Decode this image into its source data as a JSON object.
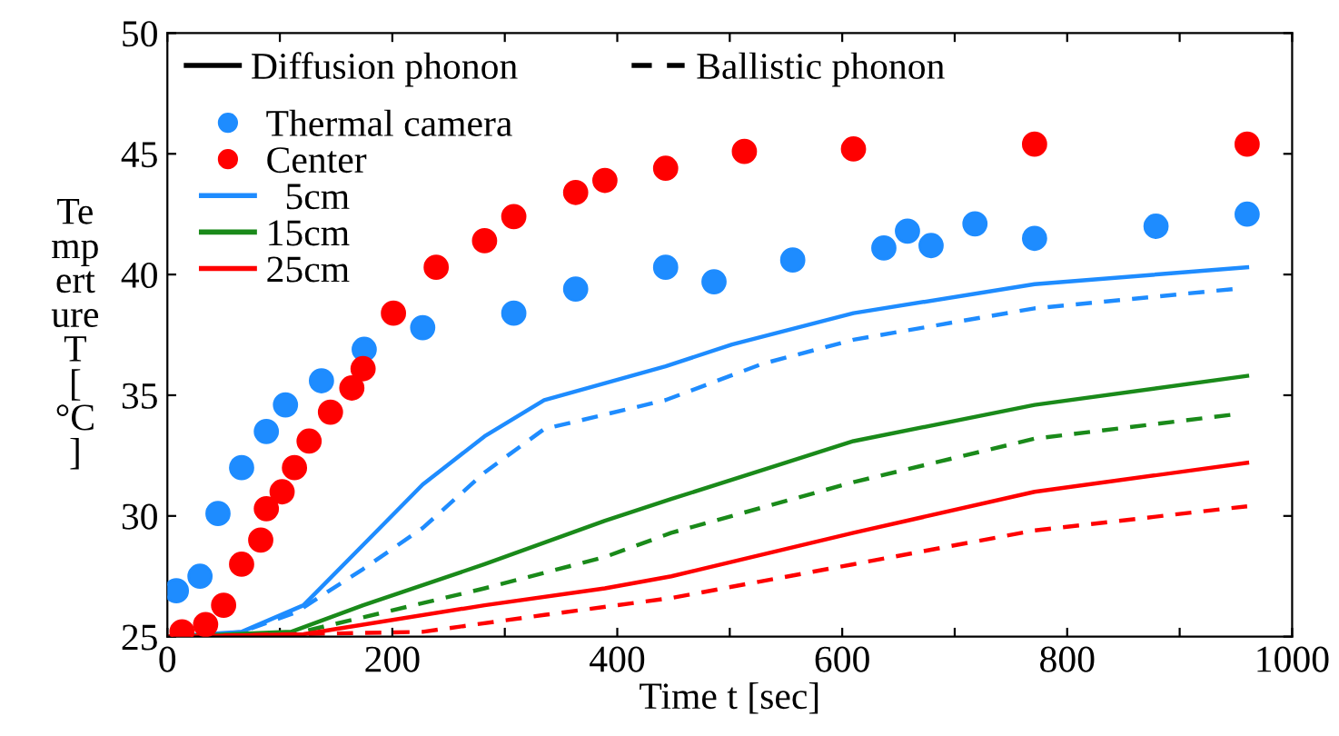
{
  "chart_data": {
    "type": "line",
    "xlabel": "Time t [sec]",
    "ylabel": "Te\nmp\nert\nure\nT\n[\n°C\n]",
    "xlim": [
      0,
      1000
    ],
    "ylim": [
      25,
      50
    ],
    "xticks": [
      0,
      {
        "value": 100,
        "label": null
      },
      200,
      {
        "value": 300,
        "label": null
      },
      400,
      {
        "value": 500,
        "label": null
      },
      600,
      {
        "value": 700,
        "label": null
      },
      800,
      {
        "value": 900,
        "label": null
      },
      1000
    ],
    "yticks": [
      25,
      30,
      35,
      40,
      45,
      50
    ],
    "legend": "top left",
    "grid": false,
    "series": [
      {
        "name": "Diffusion phonon",
        "color": "#000000",
        "line_style": "solid"
      },
      {
        "name": "Ballistic phonon",
        "color": "#000000",
        "line_style": "dashed"
      },
      {
        "name": "Thermal camera",
        "type": "scatter",
        "marker": "circle",
        "color": "#1e8cff",
        "x": [
          8,
          29,
          45,
          66,
          88,
          105,
          137,
          175,
          227,
          308,
          363,
          443,
          486,
          556,
          637,
          658,
          679,
          718,
          771,
          879,
          960
        ],
        "values": [
          26.9,
          27.5,
          30.1,
          32.0,
          33.5,
          34.6,
          35.6,
          36.9,
          37.8,
          38.4,
          39.4,
          40.3,
          39.7,
          40.6,
          41.1,
          41.8,
          41.2,
          42.1,
          41.5,
          42.0,
          42.5
        ]
      },
      {
        "name": "Center",
        "type": "scatter",
        "marker": "circle",
        "color": "#ff0000",
        "x": [
          13,
          34,
          50,
          66,
          83,
          88,
          102,
          113,
          126,
          145,
          164,
          174,
          201,
          239,
          282,
          308,
          363,
          389,
          443,
          513,
          610,
          771,
          960
        ],
        "values": [
          25.2,
          25.5,
          26.3,
          28.0,
          29.0,
          30.3,
          31.0,
          32.0,
          33.1,
          34.3,
          35.3,
          36.1,
          38.4,
          40.3,
          41.4,
          42.4,
          43.4,
          43.9,
          44.4,
          45.1,
          45.2,
          45.4,
          45.4
        ]
      },
      {
        "name": "  5cm",
        "line_style": "solid",
        "color": "#1e8cff",
        "x": [
          0,
          66,
          121,
          174,
          227,
          282,
          335,
          443,
          502,
          610,
          771,
          960
        ],
        "values": [
          25,
          25.2,
          26.3,
          28.8,
          31.3,
          33.3,
          34.8,
          36.2,
          37.1,
          38.4,
          39.6,
          40.3
        ]
      },
      {
        "line_style": "dashed",
        "color": "#1e8cff",
        "x": [
          0,
          60,
          114,
          174,
          227,
          282,
          335,
          443,
          529,
          610,
          771,
          948
        ],
        "values": [
          25,
          25.1,
          26.0,
          27.8,
          29.5,
          31.8,
          33.6,
          34.8,
          36.3,
          37.3,
          38.6,
          39.4
        ]
      },
      {
        "name": "15cm",
        "line_style": "solid",
        "color": "#1a8a1a",
        "x": [
          0,
          110,
          174,
          282,
          389,
          448,
          610,
          771,
          960
        ],
        "values": [
          25,
          25.2,
          26.3,
          28.0,
          29.8,
          30.7,
          33.1,
          34.6,
          35.8
        ]
      },
      {
        "line_style": "dashed",
        "color": "#1a8a1a",
        "x": [
          0,
          110,
          174,
          282,
          389,
          448,
          610,
          771,
          948
        ],
        "values": [
          25,
          25.1,
          25.8,
          27.0,
          28.3,
          29.3,
          31.4,
          33.2,
          34.2
        ]
      },
      {
        "name": "25cm",
        "line_style": "solid",
        "color": "#ff0000",
        "x": [
          0,
          121,
          282,
          389,
          448,
          610,
          771,
          960
        ],
        "values": [
          25,
          25.1,
          26.3,
          27.0,
          27.5,
          29.3,
          31.0,
          32.2
        ]
      },
      {
        "line_style": "dashed",
        "color": "#ff0000",
        "x": [
          0,
          227,
          335,
          448,
          610,
          771,
          960
        ],
        "values": [
          25,
          25.2,
          25.9,
          26.6,
          28.0,
          29.4,
          30.4
        ]
      }
    ]
  }
}
